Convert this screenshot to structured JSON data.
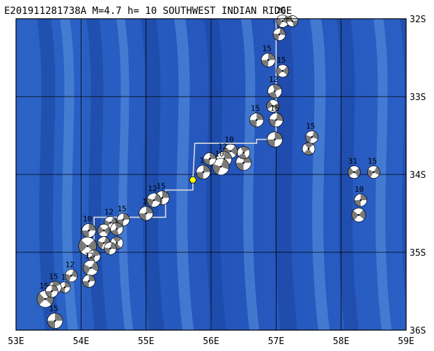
{
  "header": {
    "title": "E201911281738A  M=4.7  h= 10 SOUTHWEST INDIAN RIDGE"
  },
  "map": {
    "lon_range": [
      53,
      59
    ],
    "lat_range": [
      -36,
      -32
    ],
    "x_tick_labels": [
      "53E",
      "54E",
      "55E",
      "56E",
      "57E",
      "58E",
      "59E"
    ],
    "y_tick_labels": [
      "32S",
      "33S",
      "34S",
      "35S",
      "36S"
    ],
    "grid": true,
    "colors": {
      "ocean_deep": "#1f4fb4",
      "ocean_mid": "#2a62c8",
      "ocean_shallow": "#4a86dc",
      "grid_line": "#000000",
      "plate_boundary": "#dcdcdc",
      "event_marker": "#ffff00",
      "mech_fill": "#7a7a7a",
      "mech_blank": "#ffffff"
    },
    "event": {
      "lon": 55.72,
      "lat": -34.07,
      "icon": "epicenter-hexagon-icon"
    },
    "plate_boundary": [
      [
        57.0,
        -32.0
      ],
      [
        57.0,
        -33.55
      ],
      [
        56.7,
        -33.55
      ],
      [
        56.7,
        -33.6
      ],
      [
        55.75,
        -33.6
      ],
      [
        55.72,
        -34.07
      ],
      [
        55.72,
        -34.2
      ],
      [
        55.3,
        -34.2
      ],
      [
        55.3,
        -34.55
      ],
      [
        54.2,
        -34.55
      ],
      [
        54.2,
        -35.0
      ],
      [
        54.0,
        -35.0
      ]
    ],
    "mechanisms": [
      {
        "lon": 57.1,
        "lat": -32.03,
        "r": 9,
        "depth": "20",
        "rot": 30
      },
      {
        "lon": 57.25,
        "lat": -32.03,
        "r": 8,
        "depth": "",
        "rot": 80
      },
      {
        "lon": 57.05,
        "lat": -32.2,
        "r": 9,
        "depth": "",
        "rot": 10
      },
      {
        "lon": 56.88,
        "lat": -32.53,
        "r": 10,
        "depth": "15",
        "rot": 0
      },
      {
        "lon": 57.1,
        "lat": -32.67,
        "r": 9,
        "depth": "15",
        "rot": 45
      },
      {
        "lon": 56.98,
        "lat": -32.93,
        "r": 10,
        "depth": "12",
        "rot": -20
      },
      {
        "lon": 56.95,
        "lat": -33.12,
        "r": 9,
        "depth": "",
        "rot": 60
      },
      {
        "lon": 56.7,
        "lat": -33.3,
        "r": 10,
        "depth": "15",
        "rot": 0
      },
      {
        "lon": 57.0,
        "lat": -33.3,
        "r": 10,
        "depth": "15",
        "rot": 10
      },
      {
        "lon": 56.98,
        "lat": -33.55,
        "r": 11,
        "depth": "",
        "rot": 0
      },
      {
        "lon": 56.3,
        "lat": -33.7,
        "r": 10,
        "depth": "10",
        "rot": 40
      },
      {
        "lon": 56.5,
        "lat": -33.85,
        "r": 11,
        "depth": "15",
        "rot": 0
      },
      {
        "lon": 56.5,
        "lat": -33.72,
        "r": 9,
        "depth": "",
        "rot": -30
      },
      {
        "lon": 56.2,
        "lat": -33.8,
        "r": 11,
        "depth": "12",
        "rot": 0
      },
      {
        "lon": 56.15,
        "lat": -33.9,
        "r": 12,
        "depth": "10",
        "rot": 20
      },
      {
        "lon": 55.98,
        "lat": -33.8,
        "r": 9,
        "depth": "",
        "rot": 0
      },
      {
        "lon": 55.88,
        "lat": -33.97,
        "r": 10,
        "depth": "1",
        "rot": 0
      },
      {
        "lon": 57.55,
        "lat": -33.52,
        "r": 9,
        "depth": "15",
        "rot": 20
      },
      {
        "lon": 57.5,
        "lat": -33.67,
        "r": 9,
        "depth": "",
        "rot": -40
      },
      {
        "lon": 58.2,
        "lat": -33.97,
        "r": 9,
        "depth": "31",
        "rot": 50
      },
      {
        "lon": 58.5,
        "lat": -33.97,
        "r": 9,
        "depth": "15",
        "rot": 30
      },
      {
        "lon": 58.3,
        "lat": -34.33,
        "r": 9,
        "depth": "10",
        "rot": 0
      },
      {
        "lon": 58.27,
        "lat": -34.52,
        "r": 10,
        "depth": "",
        "rot": 40
      },
      {
        "lon": 55.25,
        "lat": -34.3,
        "r": 10,
        "depth": "15",
        "rot": 0
      },
      {
        "lon": 55.12,
        "lat": -34.33,
        "r": 10,
        "depth": "12",
        "rot": 20
      },
      {
        "lon": 55.0,
        "lat": -34.5,
        "r": 10,
        "depth": "1",
        "rot": 0
      },
      {
        "lon": 54.65,
        "lat": -34.58,
        "r": 9,
        "depth": "15",
        "rot": 0
      },
      {
        "lon": 54.45,
        "lat": -34.62,
        "r": 9,
        "depth": "12",
        "rot": 30
      },
      {
        "lon": 54.55,
        "lat": -34.7,
        "r": 9,
        "depth": "",
        "rot": -20
      },
      {
        "lon": 54.35,
        "lat": -34.72,
        "r": 9,
        "depth": "",
        "rot": 50
      },
      {
        "lon": 54.12,
        "lat": -34.72,
        "r": 10,
        "depth": "10",
        "rot": 0
      },
      {
        "lon": 54.35,
        "lat": -34.88,
        "r": 9,
        "depth": "",
        "rot": 20
      },
      {
        "lon": 54.55,
        "lat": -34.88,
        "r": 9,
        "depth": "",
        "rot": -40
      },
      {
        "lon": 54.1,
        "lat": -34.92,
        "r": 13,
        "depth": "",
        "rot": 45
      },
      {
        "lon": 54.45,
        "lat": -34.95,
        "r": 9,
        "depth": "",
        "rot": 10
      },
      {
        "lon": 54.2,
        "lat": -35.05,
        "r": 9,
        "depth": "",
        "rot": -10
      },
      {
        "lon": 54.15,
        "lat": -35.2,
        "r": 11,
        "depth": "12",
        "rot": 30
      },
      {
        "lon": 54.12,
        "lat": -35.37,
        "r": 9,
        "depth": "",
        "rot": 0
      },
      {
        "lon": 53.85,
        "lat": -35.3,
        "r": 9,
        "depth": "12",
        "rot": 20
      },
      {
        "lon": 53.75,
        "lat": -35.45,
        "r": 8,
        "depth": "1",
        "rot": 0
      },
      {
        "lon": 53.6,
        "lat": -35.45,
        "r": 9,
        "depth": "15",
        "rot": -30
      },
      {
        "lon": 53.45,
        "lat": -35.6,
        "r": 12,
        "depth": "15",
        "rot": 45
      },
      {
        "lon": 53.55,
        "lat": -35.5,
        "r": 9,
        "depth": "",
        "rot": 0
      },
      {
        "lon": 53.6,
        "lat": -35.88,
        "r": 11,
        "depth": "15",
        "rot": 0
      }
    ]
  }
}
